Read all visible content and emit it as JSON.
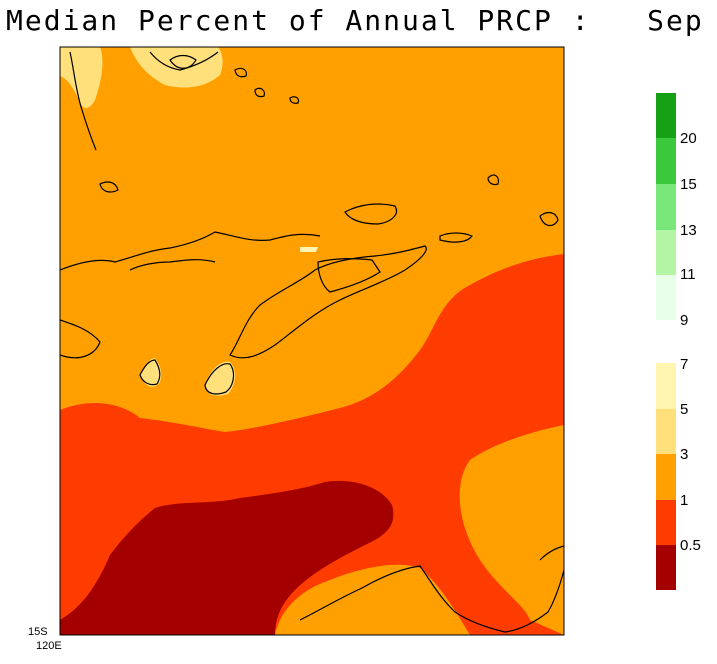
{
  "title": "Median Percent of Annual PRCP :   Sep",
  "corner": {
    "lat_label": "15S",
    "lon_label": "120E"
  },
  "colors": {
    "background": "#ffffff",
    "bin_0_05": "#a50000",
    "bin_05_1": "#ff3c00",
    "bin_1_3": "#ffa000",
    "bin_3_5": "#ffe07a",
    "bin_5_7": "#fff5b0",
    "bin_9_11": "#e6ffe6",
    "bin_11_13": "#b4f5a5",
    "bin_13_15": "#78e678",
    "bin_15_20": "#3cc83c",
    "bin_20_plus": "#15a015",
    "coastline": "#000000"
  },
  "legend": {
    "upper_labels": [
      "20",
      "15",
      "13",
      "11",
      "9"
    ],
    "lower_labels": [
      "7",
      "5",
      "3",
      "1",
      "0.5"
    ]
  },
  "icons": [
    "coastline-outlines"
  ]
}
